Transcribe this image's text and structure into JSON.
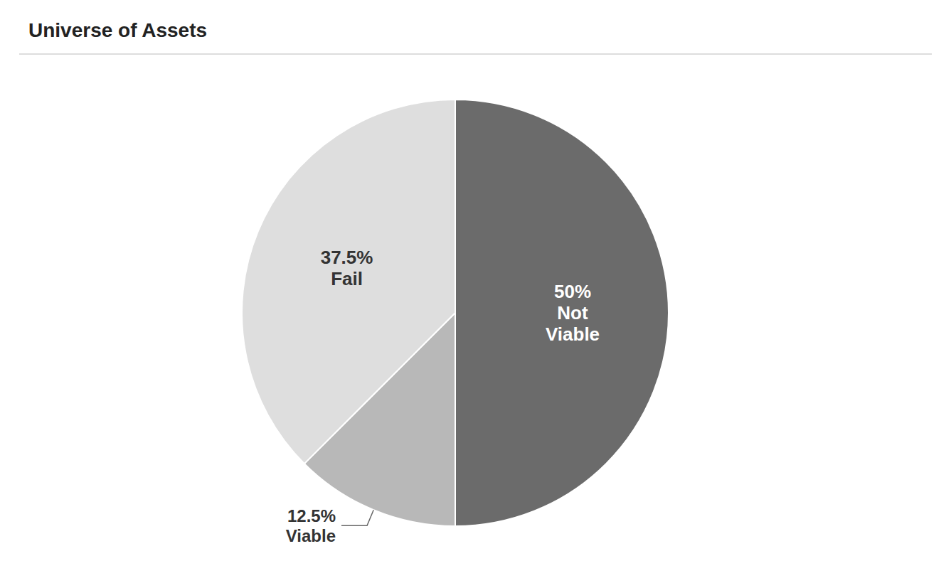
{
  "chart_data": {
    "type": "pie",
    "title": "Universe of Assets",
    "values": [
      50.0,
      12.5,
      37.5
    ],
    "value_labels": [
      "50%\nNot\nViable",
      "12.5%\nViable",
      "37.5%\nFail"
    ],
    "colors": [
      "#6b6b6b",
      "#b8b8b8",
      "#dedede"
    ],
    "data_labels": true
  }
}
